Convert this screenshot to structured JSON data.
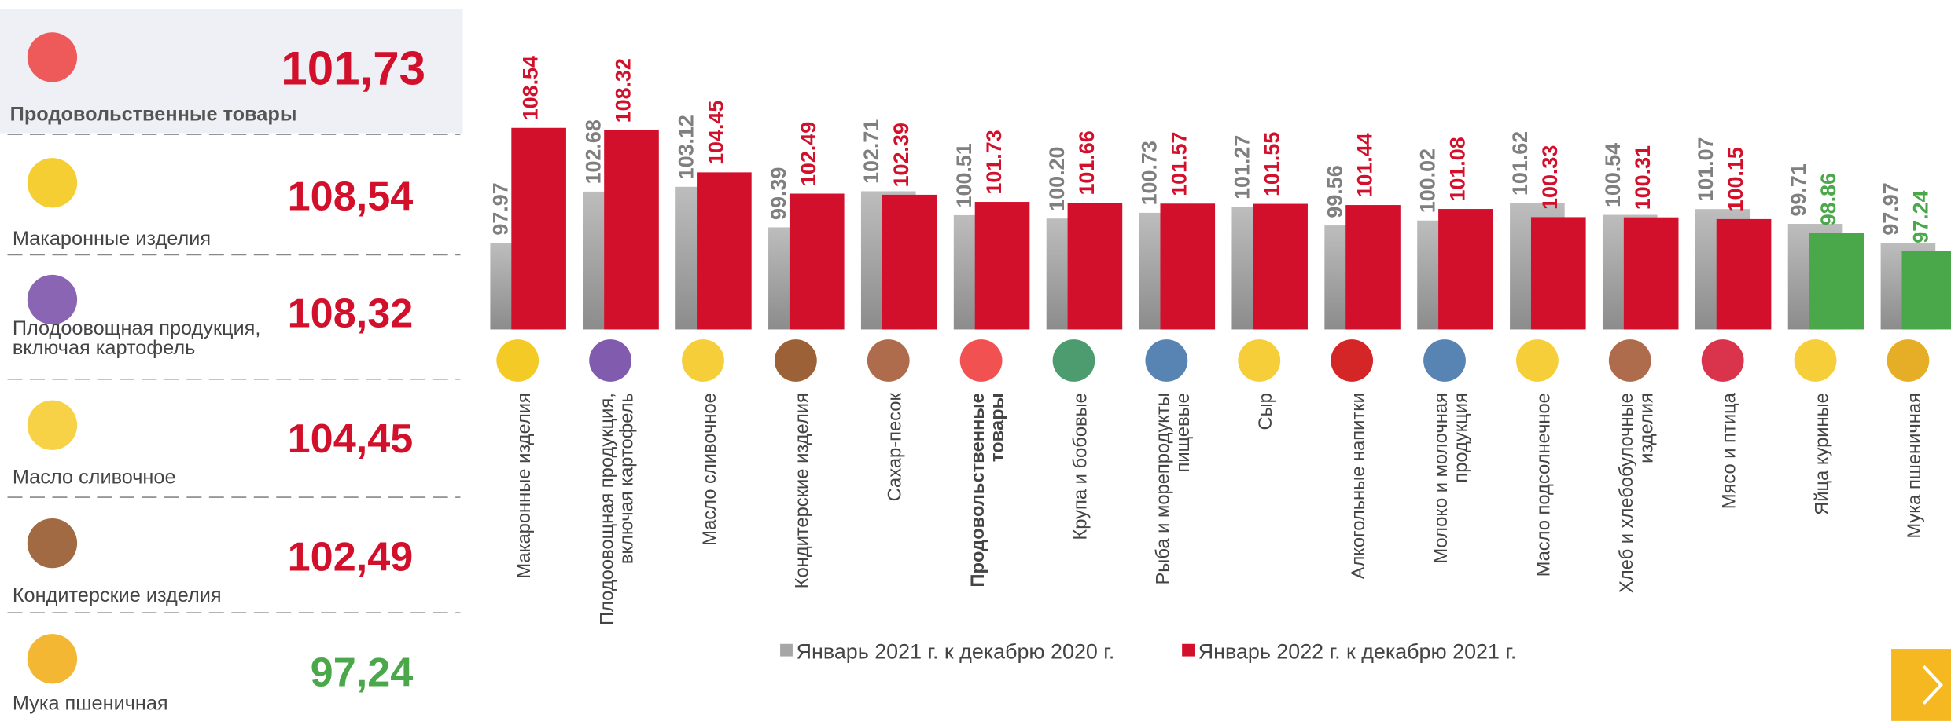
{
  "summary": [
    {
      "label": "Продовольственные товары",
      "value": "101,73"
    },
    {
      "label": "Макаронные изделия",
      "value": "108,54"
    },
    {
      "label": "Плодоовощная продукция,\nвключая картофель",
      "value": "108,32"
    },
    {
      "label": "Масло сливочное",
      "value": "104,45"
    },
    {
      "label": "Кондитерские изделия",
      "value": "102,49"
    },
    {
      "label": "Мука пшеничная",
      "value": "97,24"
    }
  ],
  "summary_colors": [
    "#d2102b",
    "#d2102b",
    "#d2102b",
    "#d2102b",
    "#d2102b",
    "#4aa84a"
  ],
  "chart_data": {
    "type": "bar",
    "categories": [
      "Макаронные изделия",
      "Плодоовощная продукция,\nвключая картофель",
      "Масло сливочное",
      "Кондитерские изделия",
      "Сахар-песок",
      "Продовольственные\nтовары",
      "Крупа и бобовые",
      "Рыба и морепродукты\nпищевые",
      "Сыр",
      "Алкогольные напитки",
      "Молоко и молочная\nпродукция",
      "Масло подсолнечное",
      "Хлеб и хлебобулочные\nизделия",
      "Мясо и птица",
      "Яйца куриные",
      "Мука пшеничная"
    ],
    "highlight_index": 5,
    "series": [
      {
        "name": "Январь 2021 г. к декабрю 2020 г.",
        "color": "#a6a6a6",
        "values": [
          97.97,
          102.68,
          103.12,
          99.39,
          102.71,
          100.51,
          100.2,
          100.73,
          101.27,
          99.56,
          100.02,
          101.62,
          100.54,
          101.07,
          99.71,
          97.97
        ],
        "value_labels": [
          "97.97",
          "102.68",
          "103.12",
          "99.39",
          "102.71",
          "100.51",
          "100.20",
          "100.73",
          "101.27",
          "99.56",
          "100.02",
          "101.62",
          "100.54",
          "101.07",
          "99.71",
          "97.97"
        ]
      },
      {
        "name": "Январь 2022 г. к декабрю 2021 г.",
        "color": "#d2102b",
        "colors": [
          "#d2102b",
          "#d2102b",
          "#d2102b",
          "#d2102b",
          "#d2102b",
          "#d2102b",
          "#d2102b",
          "#d2102b",
          "#d2102b",
          "#d2102b",
          "#d2102b",
          "#d2102b",
          "#d2102b",
          "#d2102b",
          "#4aa84a",
          "#4aa84a"
        ],
        "values": [
          108.54,
          108.32,
          104.45,
          102.49,
          102.39,
          101.73,
          101.66,
          101.57,
          101.55,
          101.44,
          101.08,
          100.33,
          100.31,
          100.15,
          98.86,
          97.24
        ],
        "value_labels": [
          "108.54",
          "108.32",
          "104.45",
          "102.49",
          "102.39",
          "101.73",
          "101.66",
          "101.57",
          "101.55",
          "101.44",
          "101.08",
          "100.33",
          "100.31",
          "100.15",
          "98.86",
          "97.24"
        ]
      }
    ],
    "ylim": [
      90,
      110
    ]
  }
}
